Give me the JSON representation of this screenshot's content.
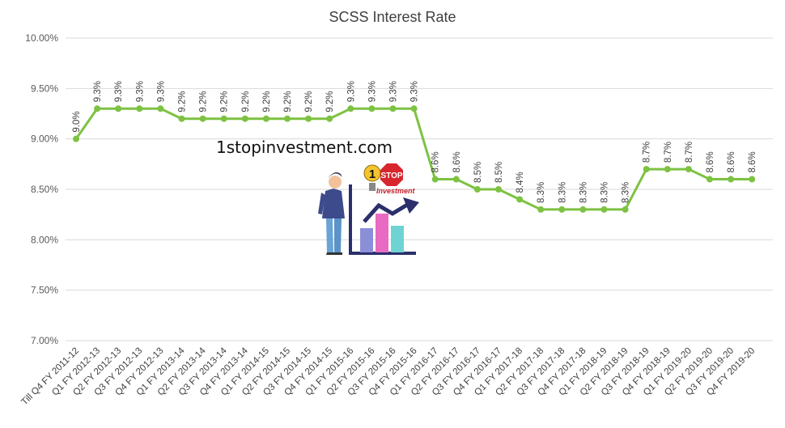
{
  "chart_data": {
    "type": "line",
    "title": "SCSS Interest Rate",
    "xlabel": "",
    "ylabel": "",
    "ylim": [
      7.0,
      10.0
    ],
    "yticks": [
      "7.00%",
      "7.50%",
      "8.00%",
      "8.50%",
      "9.00%",
      "9.50%",
      "10.00%"
    ],
    "grid": true,
    "legend": "none",
    "categories": [
      "Till Q4 FY 2011-12",
      "Q1 FY 2012-13",
      "Q2 FY 2012-13",
      "Q3 FY 2012-13",
      "Q4 FY 2012-13",
      "Q1 FY 2013-14",
      "Q2 FY 2013-14",
      "Q3 FY 2013-14",
      "Q4 FY 2013-14",
      "Q1 FY 2014-15",
      "Q2 FY 2014-15",
      "Q3 FY 2014-15",
      "Q4 FY 2014-15",
      "Q1 FY 2015-16",
      "Q2 FY 2015-16",
      "Q3 FY 2015-16",
      "Q4 FY 2015-16",
      "Q1 FY 2016-17",
      "Q2 FY 2016-17",
      "Q3 FY 2016-17",
      "Q4 FY 2016-17",
      "Q1 FY 2017-18",
      "Q2 FY 2017-18",
      "Q3 FY 2017-18",
      "Q4 FY 2017-18",
      "Q1 FY 2018-19",
      "Q2 FY 2018-19",
      "Q3 FY 2018-19",
      "Q4 FY 2018-19",
      "Q1 FY 2019-20",
      "Q2 FY 2019-20",
      "Q3 FY 2019-20",
      "Q4 FY 2019-20"
    ],
    "series": [
      {
        "values": [
          9.0,
          9.3,
          9.3,
          9.3,
          9.3,
          9.2,
          9.2,
          9.2,
          9.2,
          9.2,
          9.2,
          9.2,
          9.2,
          9.3,
          9.3,
          9.3,
          9.3,
          8.6,
          8.6,
          8.5,
          8.5,
          8.4,
          8.3,
          8.3,
          8.3,
          8.3,
          8.3,
          8.7,
          8.7,
          8.7,
          8.6,
          8.6,
          8.6
        ],
        "data_labels": [
          "9.0%",
          "9.3%",
          "9.3%",
          "9.3%",
          "9.3%",
          "9.2%",
          "9.2%",
          "9.2%",
          "9.2%",
          "9.2%",
          "9.2%",
          "9.2%",
          "9.2%",
          "9.3%",
          "9.3%",
          "9.3%",
          "9.3%",
          "8.6%",
          "8.6%",
          "8.5%",
          "8.5%",
          "8.4%",
          "8.3%",
          "8.3%",
          "8.3%",
          "8.3%",
          "8.3%",
          "8.7%",
          "8.7%",
          "8.7%",
          "8.6%",
          "8.6%",
          "8.6%"
        ],
        "color": "#7dc242"
      }
    ]
  },
  "watermark": {
    "text": "1stopinvestment.com",
    "logo_number": "1",
    "logo_word": "STOP",
    "logo_tagline": "Investment"
  },
  "colors": {
    "line": "#7dc242",
    "grid": "#d9d9d9",
    "text": "#404040"
  }
}
